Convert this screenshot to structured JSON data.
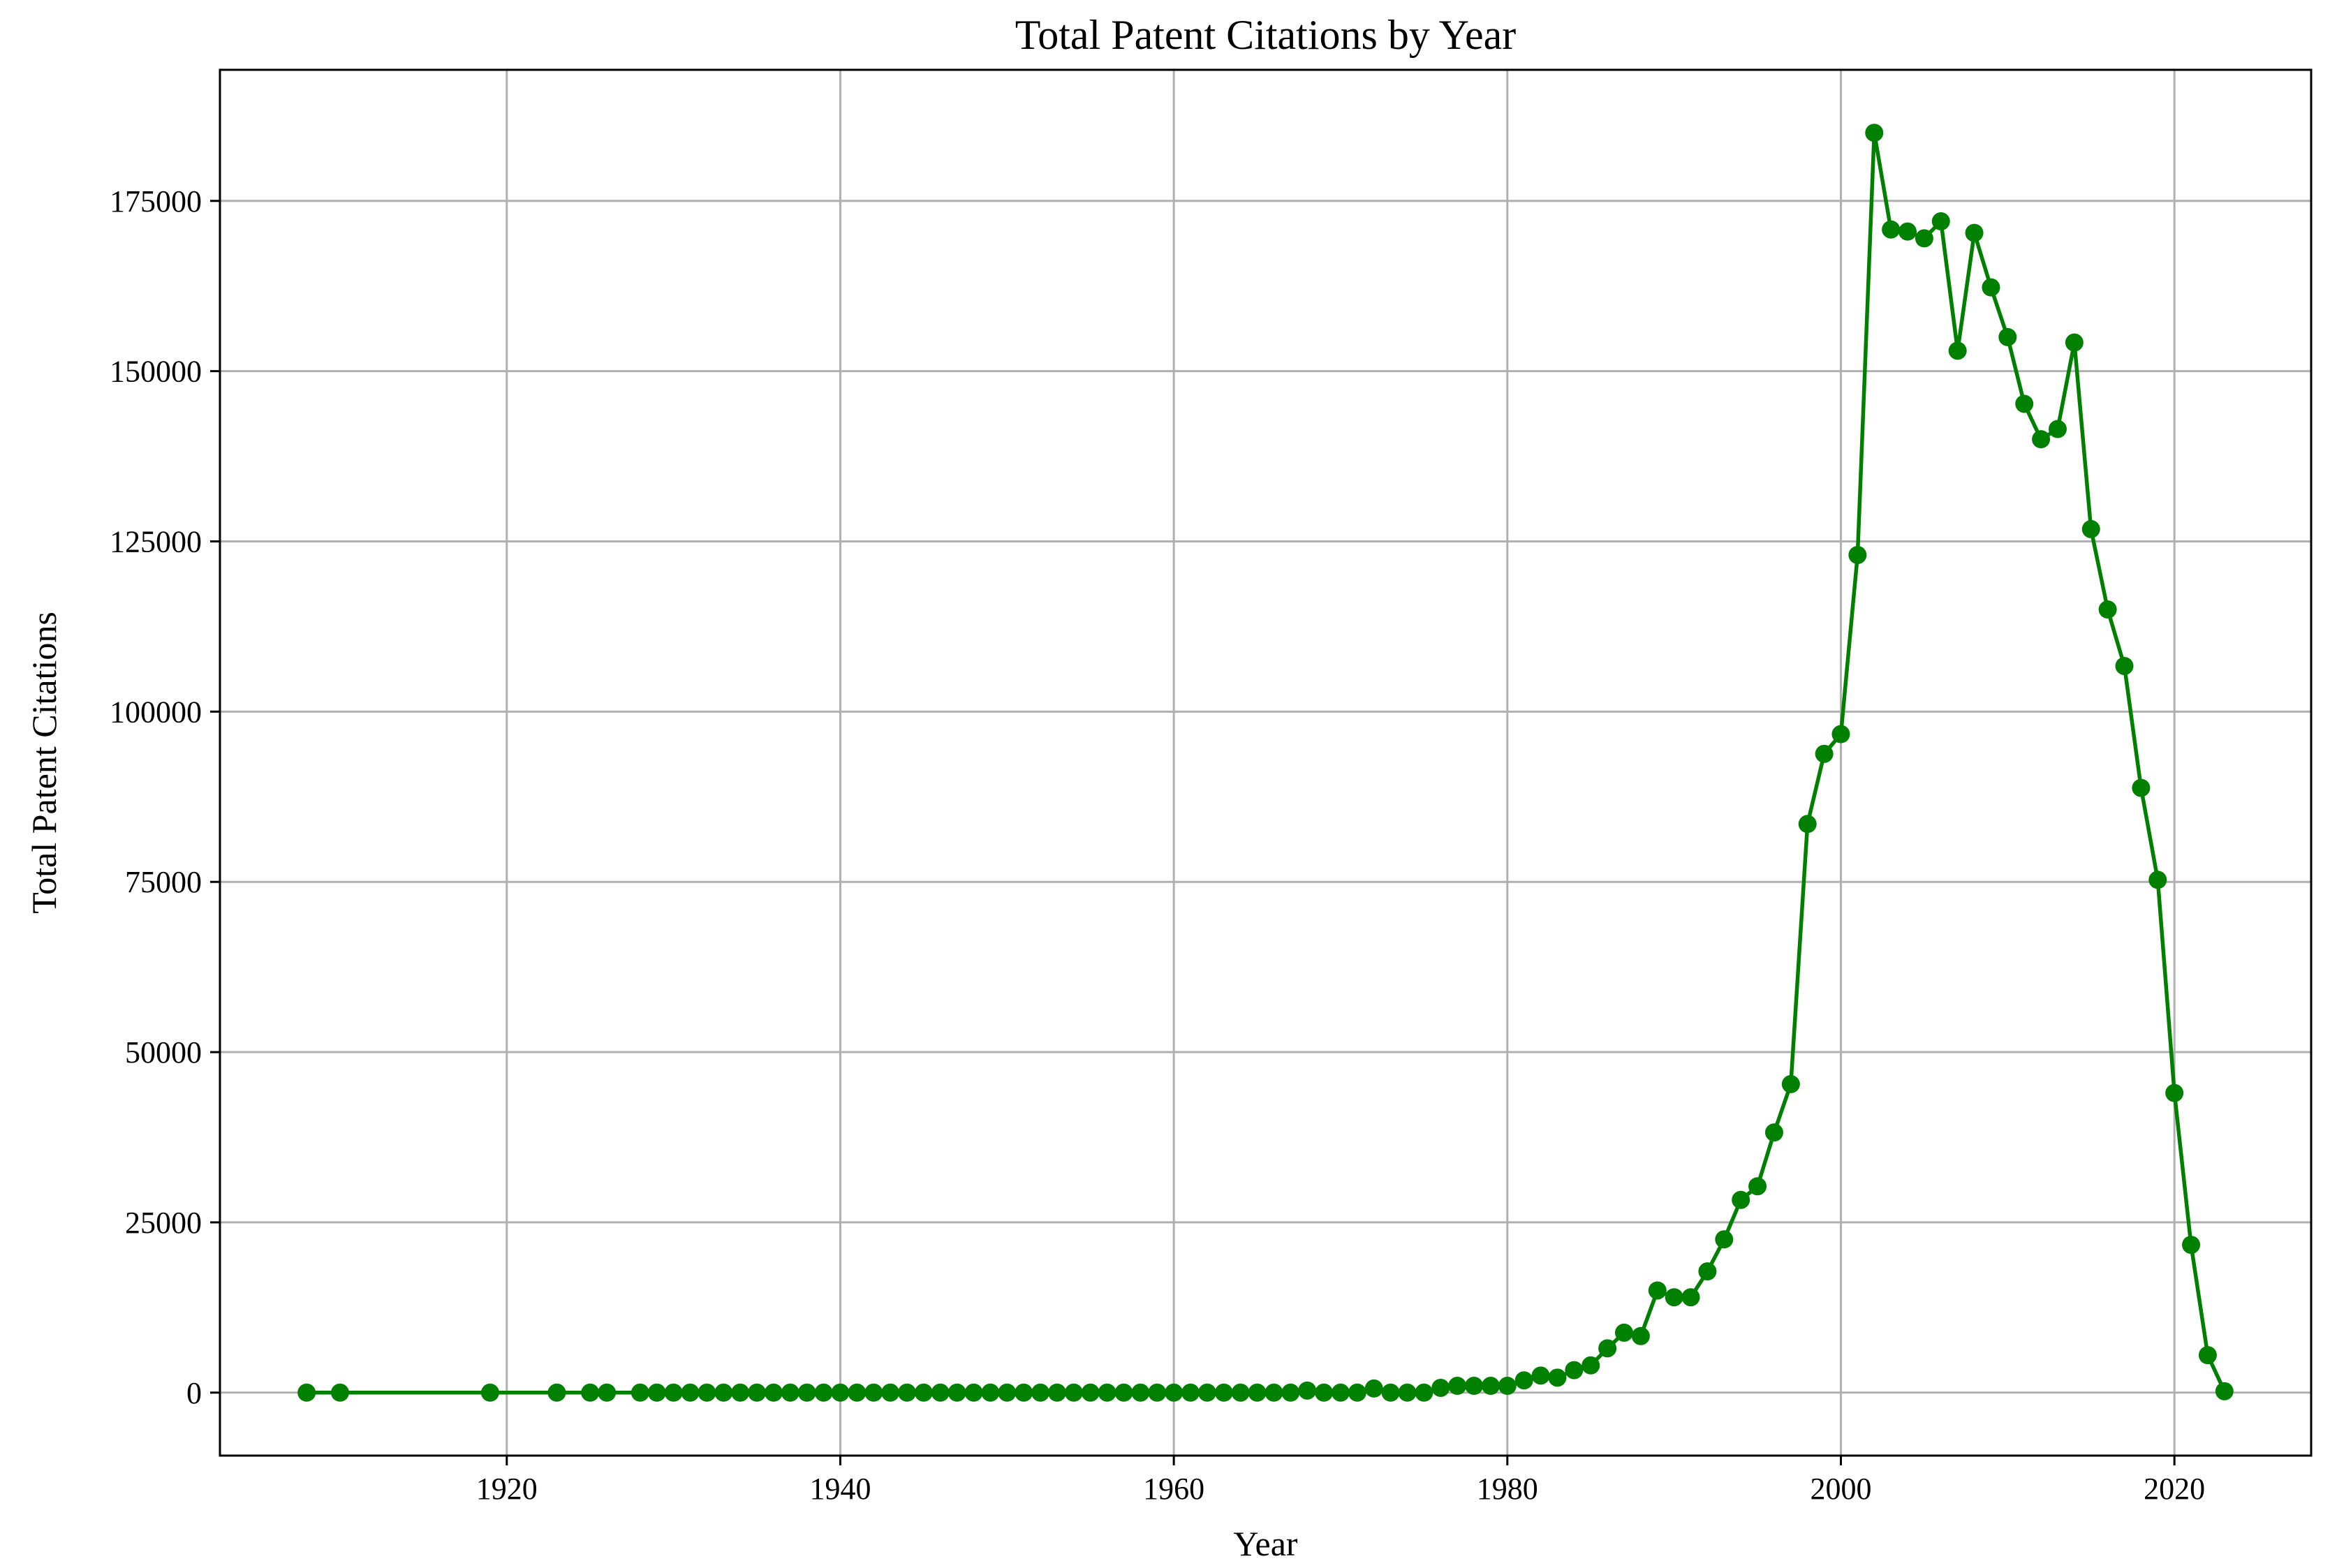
{
  "chart_data": {
    "type": "line",
    "title": "Total Patent Citations by Year",
    "xlabel": "Year",
    "ylabel": "Total Patent Citations",
    "xlim": [
      1902.8,
      2028.2
    ],
    "ylim": [
      -9250,
      194250
    ],
    "xticks": [
      1920,
      1940,
      1960,
      1980,
      2000,
      2020
    ],
    "yticks": [
      0,
      25000,
      50000,
      75000,
      100000,
      125000,
      150000,
      175000
    ],
    "grid": true,
    "marker": "circle",
    "color": "#008000",
    "series": [
      {
        "x": [
          1908,
          1910,
          1919,
          1923,
          1925,
          1926,
          1928,
          1929,
          1930,
          1931,
          1932,
          1933,
          1934,
          1935,
          1936,
          1937,
          1938,
          1939,
          1940,
          1941,
          1942,
          1943,
          1944,
          1945,
          1946,
          1947,
          1948,
          1949,
          1950,
          1951,
          1952,
          1953,
          1954,
          1955,
          1956,
          1957,
          1958,
          1959,
          1960,
          1961,
          1962,
          1963,
          1964,
          1965,
          1966,
          1967,
          1968,
          1969,
          1970,
          1971,
          1972,
          1973,
          1974,
          1975,
          1976,
          1977,
          1978,
          1979,
          1980,
          1981,
          1982,
          1983,
          1984,
          1985,
          1986,
          1987,
          1988,
          1989,
          1990,
          1991,
          1992,
          1993,
          1994,
          1995,
          1996,
          1997,
          1998,
          1999,
          2000,
          2001,
          2002,
          2003,
          2004,
          2005,
          2006,
          2007,
          2008,
          2009,
          2010,
          2011,
          2012,
          2013,
          2014,
          2015,
          2016,
          2017,
          2018,
          2019,
          2020,
          2021,
          2022,
          2023
        ],
        "y": [
          0,
          0,
          0,
          0,
          0,
          0,
          0,
          0,
          0,
          0,
          0,
          0,
          0,
          0,
          0,
          0,
          0,
          0,
          0,
          0,
          0,
          0,
          0,
          0,
          0,
          0,
          0,
          0,
          0,
          0,
          0,
          0,
          0,
          0,
          0,
          0,
          0,
          0,
          0,
          0,
          0,
          0,
          0,
          0,
          0,
          0,
          300,
          0,
          0,
          0,
          600,
          0,
          0,
          0,
          700,
          1000,
          1000,
          1000,
          1000,
          1800,
          2500,
          2200,
          3300,
          4000,
          6500,
          8800,
          8300,
          15000,
          14000,
          14000,
          17800,
          22500,
          28300,
          30300,
          38200,
          45300,
          83500,
          93800,
          96700,
          123000,
          185000,
          170800,
          170500,
          169500,
          172000,
          153000,
          170300,
          162300,
          155000,
          145200,
          140000,
          141500,
          154200,
          126800,
          115000,
          106700,
          88800,
          75300,
          44000,
          21700,
          5500,
          200
        ]
      }
    ]
  }
}
